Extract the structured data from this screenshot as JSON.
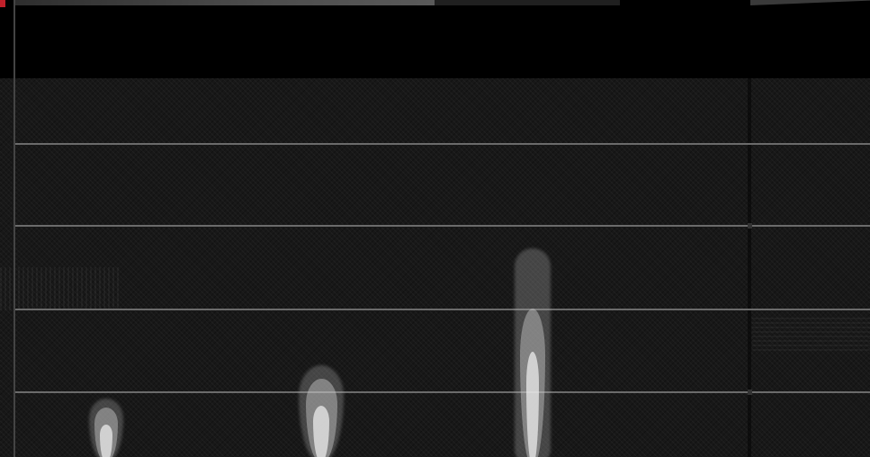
{
  "progress": {
    "fraction": 0.694
  },
  "icons": {
    "health_marker": "red-marker",
    "flame": "white-fire-jet"
  },
  "colors": {
    "background": "#000000",
    "floor": "#181818",
    "rope": "#6b6b6b",
    "marker": "#c0202a",
    "flame_core": "#ebebeb"
  }
}
